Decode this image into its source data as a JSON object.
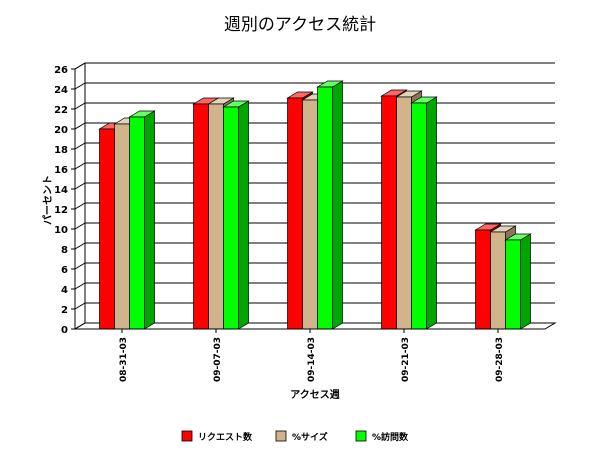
{
  "chart_data": {
    "type": "bar",
    "title": "週別のアクセス統計",
    "xlabel": "アクセス週",
    "ylabel": "パーセント",
    "categories": [
      "08-31-03",
      "09-07-03",
      "09-14-03",
      "09-21-03",
      "09-28-03"
    ],
    "ylim": [
      0,
      26
    ],
    "y_ticks": [
      "0",
      "2",
      "4",
      "6",
      "8",
      "10",
      "12",
      "14",
      "16",
      "18",
      "20",
      "22",
      "24",
      "26"
    ],
    "grid": true,
    "legend_position": "bottom",
    "series": [
      {
        "name": "リクエスト数",
        "color": "#ff0000",
        "values": [
          20.0,
          22.5,
          23.1,
          23.3,
          9.9
        ]
      },
      {
        "name": "%サイズ",
        "color": "#d2b48c",
        "values": [
          20.5,
          22.5,
          22.9,
          23.2,
          9.7
        ]
      },
      {
        "name": "%訪問数",
        "color": "#00ff00",
        "values": [
          21.2,
          22.2,
          24.2,
          22.6,
          8.9
        ]
      }
    ]
  }
}
